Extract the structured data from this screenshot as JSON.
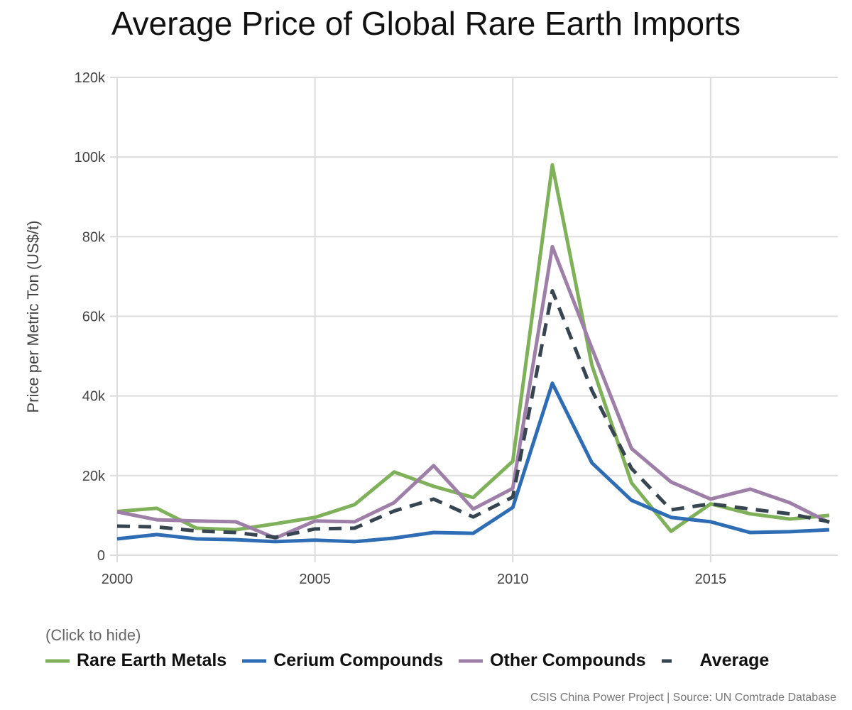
{
  "chart_data": {
    "type": "line",
    "title": "Average Price of Global Rare Earth Imports",
    "xlabel": "",
    "ylabel": "Price per Metric Ton (US$/t)",
    "xlim": [
      2000,
      2018
    ],
    "ylim": [
      0,
      120000
    ],
    "x_ticks": [
      2000,
      2005,
      2010,
      2015
    ],
    "x_tick_labels": [
      "2000",
      "2005",
      "2010",
      "2015"
    ],
    "y_ticks": [
      0,
      20000,
      40000,
      60000,
      80000,
      100000,
      120000
    ],
    "y_tick_labels": [
      "0",
      "20k",
      "40k",
      "60k",
      "80k",
      "100k",
      "120k"
    ],
    "grid": true,
    "legend_position": "bottom",
    "x": [
      2000,
      2001,
      2002,
      2003,
      2004,
      2005,
      2006,
      2007,
      2008,
      2009,
      2010,
      2011,
      2012,
      2013,
      2014,
      2015,
      2016,
      2017,
      2018
    ],
    "series": [
      {
        "name": "Rare Earth Metals",
        "color": "#7fb15a",
        "dashed": false,
        "values": [
          11000,
          11800,
          6800,
          6400,
          7900,
          9500,
          12700,
          20900,
          17300,
          14500,
          23600,
          98000,
          47700,
          18200,
          6000,
          12900,
          10400,
          9100,
          10000
        ]
      },
      {
        "name": "Cerium Compounds",
        "color": "#2e6db4",
        "dashed": false,
        "values": [
          4100,
          5200,
          4100,
          3900,
          3400,
          3800,
          3400,
          4300,
          5700,
          5500,
          12000,
          43200,
          23200,
          13800,
          9500,
          8400,
          5700,
          5900,
          6400
        ]
      },
      {
        "name": "Other Compounds",
        "color": "#9e7fa8",
        "dashed": false,
        "values": [
          10900,
          8900,
          8600,
          8400,
          4300,
          8600,
          8400,
          13200,
          22500,
          11600,
          16800,
          77500,
          52000,
          26800,
          18400,
          14100,
          16600,
          13200,
          8200
        ]
      },
      {
        "name": "Average",
        "color": "#36454f",
        "dashed": true,
        "values": [
          7300,
          7100,
          6100,
          5700,
          4500,
          6600,
          6800,
          11100,
          14100,
          9600,
          14600,
          66400,
          41400,
          21800,
          11400,
          12900,
          11600,
          10400,
          8400
        ]
      }
    ]
  },
  "legend_hint": "(Click to hide)",
  "source": "CSIS China Power Project | Source: UN Comtrade Database"
}
